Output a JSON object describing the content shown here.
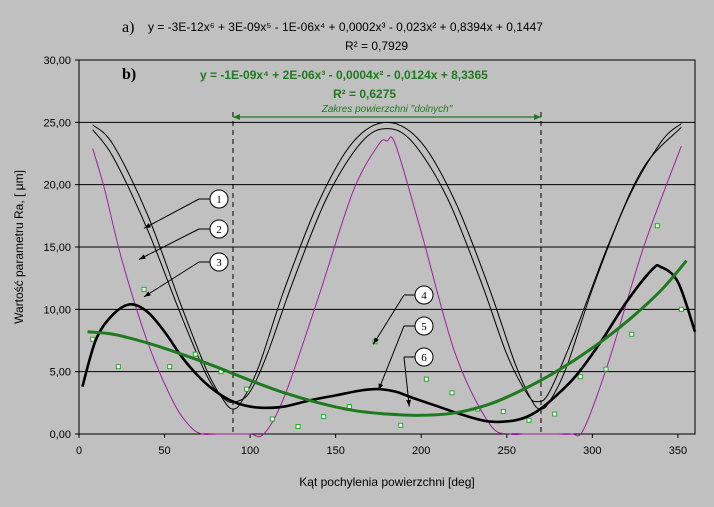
{
  "chart_data": {
    "type": "line",
    "xlabel": "Kąt pochylenia powierzchni [deg]",
    "ylabel": "Wartość parametru Ra,  [ μm]",
    "xlim": [
      0,
      360
    ],
    "ylim": [
      0,
      30
    ],
    "x_ticks": [
      "0",
      "50",
      "100",
      "150",
      "200",
      "250",
      "300",
      "350"
    ],
    "y_ticks": [
      "0,00",
      "5,00",
      "10,00",
      "15,00",
      "20,00",
      "25,00",
      "30,00"
    ],
    "grid": "horizontal",
    "range_annotation": {
      "label": "Zakres powierzchni \"dolnych\"",
      "from": 90,
      "to": 270
    },
    "equation_a": {
      "letter": "a)",
      "text": "y = -3E-12x⁶ + 3E-09x⁵ - 1E-06x⁴ + 0,0002x³ - 0,023x² + 0,8394x + 0,1447",
      "r2": "R² = 0,7929",
      "color": "#000000"
    },
    "equation_b": {
      "letter": "b)",
      "text": "y = -1E-09x⁴ + 2E-06x³ - 0,0004x² - 0,0124x + 8,3365",
      "r2": "R² = 0,6275",
      "color": "#1f7a1f"
    },
    "callout_labels": [
      "1",
      "2",
      "3",
      "4",
      "5",
      "6"
    ],
    "series": [
      {
        "name": "1",
        "color": "#000000",
        "x": [
          8,
          20,
          40,
          60,
          75,
          85,
          90,
          95,
          105,
          120,
          140,
          160,
          180,
          200,
          220,
          240,
          255,
          265,
          270,
          275,
          285,
          300,
          320,
          340,
          352
        ],
        "y": [
          24.8,
          23.2,
          17.6,
          10.2,
          5.0,
          2.6,
          2.0,
          2.6,
          5.4,
          11.6,
          18.6,
          23.4,
          25.0,
          23.4,
          18.6,
          11.6,
          5.6,
          2.6,
          2.0,
          2.6,
          5.4,
          11.6,
          18.6,
          23.4,
          24.9
        ]
      },
      {
        "name": "2",
        "color": "#000000",
        "x": [
          8,
          20,
          40,
          60,
          75,
          85,
          92,
          100,
          110,
          125,
          145,
          165,
          180,
          195,
          215,
          235,
          250,
          262,
          268,
          275,
          290,
          310,
          330,
          352
        ],
        "y": [
          24.4,
          22.2,
          16.4,
          9.4,
          4.6,
          2.8,
          2.6,
          3.4,
          6.4,
          12.2,
          19.0,
          23.4,
          24.5,
          23.4,
          19.0,
          12.2,
          6.4,
          3.2,
          2.6,
          3.4,
          8.2,
          15.4,
          21.4,
          24.6
        ]
      },
      {
        "name": "3",
        "color": "#a020a0",
        "x": [
          8,
          15,
          25,
          40,
          55,
          65,
          72,
          80,
          90,
          100,
          108,
          120,
          140,
          160,
          175,
          180,
          185,
          200,
          220,
          240,
          252,
          260,
          270,
          280,
          288,
          295,
          310,
          330,
          352
        ],
        "y": [
          22.9,
          19.6,
          14.0,
          7.4,
          2.6,
          0.6,
          0.0,
          0.0,
          0.0,
          0.0,
          0.0,
          3.0,
          11.0,
          19.4,
          23.2,
          23.5,
          23.2,
          16.2,
          6.4,
          0.8,
          0.0,
          0.0,
          0.0,
          0.0,
          0.0,
          0.4,
          6.0,
          15.0,
          23.1
        ]
      },
      {
        "name": "4",
        "color": "#22aa22",
        "style": "markers",
        "x": [
          8,
          23,
          38,
          53,
          68,
          83,
          98,
          113,
          128,
          143,
          158,
          173,
          188,
          203,
          218,
          233,
          248,
          263,
          278,
          293,
          308,
          323,
          338,
          352
        ],
        "y": [
          7.6,
          5.4,
          11.6,
          5.4,
          6.4,
          5.0,
          3.6,
          1.2,
          0.6,
          1.4,
          2.2,
          7.4,
          0.7,
          4.4,
          3.3,
          2.0,
          1.8,
          1.1,
          1.6,
          4.6,
          5.2,
          8.0,
          16.7,
          10.0
        ]
      },
      {
        "name": "5",
        "color": "#000000",
        "x": [
          2,
          10,
          20,
          30,
          40,
          50,
          60,
          70,
          80,
          90,
          100,
          110,
          120,
          135,
          150,
          165,
          175,
          185,
          195,
          210,
          225,
          240,
          255,
          265,
          275,
          290,
          305,
          320,
          335,
          340,
          350,
          360
        ],
        "y": [
          3.8,
          7.6,
          9.6,
          10.4,
          9.8,
          8.2,
          6.2,
          4.6,
          3.4,
          2.6,
          2.2,
          2.1,
          2.2,
          2.7,
          3.1,
          3.5,
          3.6,
          3.4,
          2.9,
          2.2,
          1.5,
          1.0,
          1.1,
          1.6,
          2.6,
          4.6,
          7.4,
          10.6,
          13.2,
          13.4,
          12.2,
          8.2
        ]
      },
      {
        "name": "6",
        "color": "#1f7a1f",
        "x": [
          5,
          20,
          40,
          60,
          80,
          100,
          120,
          140,
          160,
          180,
          200,
          220,
          240,
          260,
          280,
          300,
          320,
          340,
          355
        ],
        "y": [
          8.2,
          8.0,
          7.3,
          6.4,
          5.4,
          4.3,
          3.3,
          2.5,
          1.9,
          1.6,
          1.5,
          1.7,
          2.4,
          3.6,
          5.1,
          6.9,
          9.0,
          11.5,
          13.9
        ]
      }
    ]
  }
}
